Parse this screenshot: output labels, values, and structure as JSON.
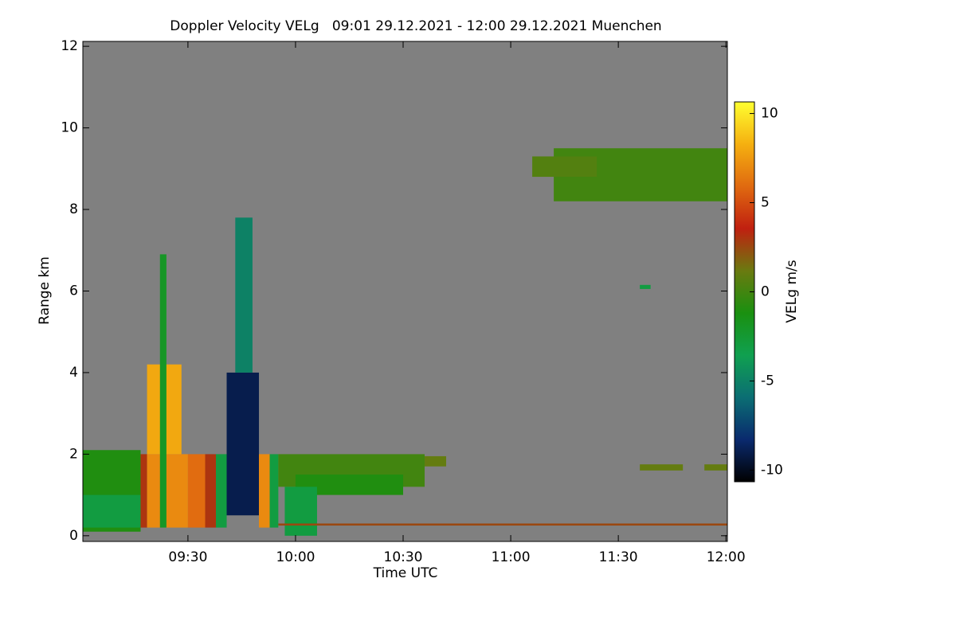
{
  "chart_data": {
    "type": "heatmap",
    "title": "Doppler Velocity VELg   09:01 29.12.2021 - 12:00 29.12.2021 Muenchen",
    "x_label": "Time UTC",
    "y_label": "Range km",
    "colorbar_label": "VELg m/s",
    "background": "#808080",
    "xlim": [
      9.0117,
      12.0067
    ],
    "xticks": [
      {
        "value": 9.5,
        "label": "09:30"
      },
      {
        "value": 10,
        "label": "10:00"
      },
      {
        "value": 10.5,
        "label": "10:30"
      },
      {
        "value": 11,
        "label": "11:00"
      },
      {
        "value": 11.5,
        "label": "11:30"
      },
      {
        "value": 12,
        "label": "12:00"
      }
    ],
    "ylim": [
      -0.14,
      12.12
    ],
    "yticks": [
      0,
      2,
      4,
      6,
      8,
      10,
      12
    ],
    "zlim": [
      -10.65,
      10.65
    ],
    "zticks": [
      -10,
      -5,
      0,
      5,
      10
    ],
    "colors": [
      "#000000",
      "#0a2a6e",
      "#0b6e73",
      "#10a050",
      "#1a9010",
      "#6a7a10",
      "#c02010",
      "#e06a10",
      "#f5b010",
      "#ffff30"
    ],
    "cells": [
      {
        "x0": 9.0117,
        "x1": 9.28,
        "y0": 0.1,
        "y1": 2.1,
        "value": -1
      },
      {
        "x0": 9.0117,
        "x1": 9.28,
        "y0": 0.2,
        "y1": 1.0,
        "value": -3
      },
      {
        "x0": 9.28,
        "x1": 9.31,
        "y0": 0.2,
        "y1": 2.0,
        "value": 3
      },
      {
        "x0": 9.31,
        "x1": 9.5,
        "y0": 0.2,
        "y1": 2.0,
        "value": 7
      },
      {
        "x0": 9.31,
        "x1": 9.47,
        "y0": 2.0,
        "y1": 4.2,
        "value": 8
      },
      {
        "x0": 9.37,
        "x1": 9.4,
        "y0": 0.2,
        "y1": 6.9,
        "value": -2
      },
      {
        "x0": 9.5,
        "x1": 9.58,
        "y0": 0.2,
        "y1": 2.0,
        "value": 6
      },
      {
        "x0": 9.58,
        "x1": 9.63,
        "y0": 0.2,
        "y1": 2.0,
        "value": 3
      },
      {
        "x0": 9.63,
        "x1": 9.68,
        "y0": 0.2,
        "y1": 2.0,
        "value": -3
      },
      {
        "x0": 9.68,
        "x1": 9.83,
        "y0": 0.5,
        "y1": 4.0,
        "value": -9
      },
      {
        "x0": 9.72,
        "x1": 9.8,
        "y0": 4.0,
        "y1": 7.8,
        "value": -5
      },
      {
        "x0": 9.83,
        "x1": 9.88,
        "y0": 0.2,
        "y1": 2.0,
        "value": 7
      },
      {
        "x0": 9.88,
        "x1": 9.92,
        "y0": 0.2,
        "y1": 2.0,
        "value": -3
      },
      {
        "x0": 9.92,
        "x1": 10.6,
        "y0": 1.2,
        "y1": 2.0,
        "value": 0
      },
      {
        "x0": 10.0,
        "x1": 10.5,
        "y0": 1.0,
        "y1": 1.5,
        "value": -1
      },
      {
        "x0": 9.95,
        "x1": 10.1,
        "y0": 0.0,
        "y1": 1.2,
        "value": -3
      },
      {
        "x0": 10.6,
        "x1": 10.7,
        "y0": 1.7,
        "y1": 1.95,
        "value": 1
      },
      {
        "x0": 11.2,
        "x1": 12.0067,
        "y0": 8.2,
        "y1": 9.5,
        "value": 0
      },
      {
        "x0": 11.1,
        "x1": 11.4,
        "y0": 8.8,
        "y1": 9.3,
        "value": 0.5
      },
      {
        "x0": 11.6,
        "x1": 11.65,
        "y0": 6.05,
        "y1": 6.15,
        "value": -3
      },
      {
        "x0": 11.6,
        "x1": 11.8,
        "y0": 1.6,
        "y1": 1.75,
        "value": 1
      },
      {
        "x0": 11.9,
        "x1": 12.0067,
        "y0": 1.6,
        "y1": 1.75,
        "value": 1
      },
      {
        "x0": 9.92,
        "x1": 12.0067,
        "y0": 0.25,
        "y1": 0.3,
        "value": 2.5
      }
    ]
  }
}
